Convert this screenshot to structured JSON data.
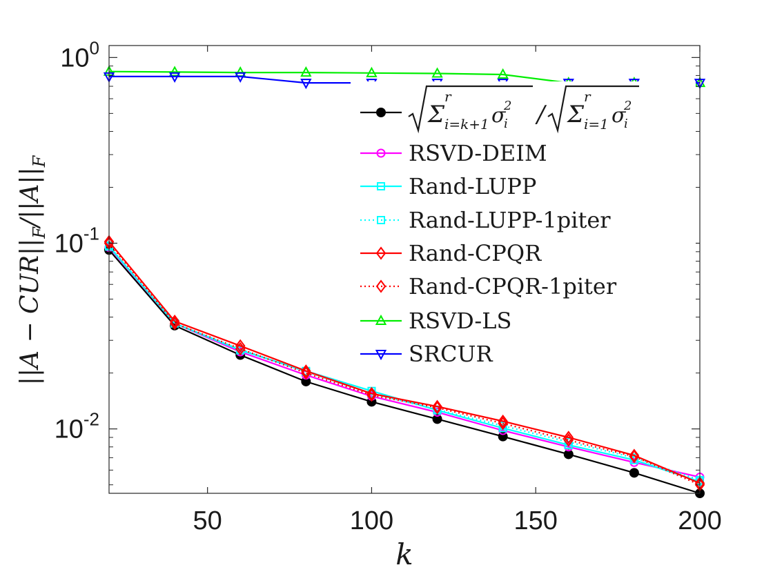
{
  "chart_data": {
    "type": "line",
    "title": "",
    "xlabel": "k",
    "ylabel": "||A − CUR||_F / ||A||_F",
    "x": [
      20,
      40,
      60,
      80,
      100,
      120,
      140,
      160,
      180,
      200
    ],
    "xlim": [
      20,
      200
    ],
    "ylim": [
      0.0045,
      1.16
    ],
    "yscale": "log",
    "xticks": [
      50,
      100,
      150,
      200
    ],
    "xtick_labels": [
      "50",
      "100",
      "150",
      "200"
    ],
    "yticks": [
      {
        "value": 1,
        "mantissa": "10",
        "exponent": "0"
      },
      {
        "value": 0.1,
        "mantissa": "10",
        "exponent": "-1"
      },
      {
        "value": 0.01,
        "mantissa": "10",
        "exponent": "-2"
      }
    ],
    "grid": false,
    "legend_position": "top-right",
    "series": [
      {
        "name": "√(Σ_{i=k+1}^r σ_i²) / √(Σ_{i=1}^r σ_i²)",
        "key": "sigma-tail",
        "color": "#000000",
        "marker": "dot",
        "linestyle": "solid",
        "values": [
          0.092,
          0.036,
          0.025,
          0.018,
          0.014,
          0.0113,
          0.0091,
          0.0073,
          0.0058,
          0.0045
        ]
      },
      {
        "name": "RSVD-DEIM",
        "key": "rsvd-deim",
        "color": "#ff00ff",
        "marker": "circle",
        "linestyle": "solid",
        "values": [
          0.095,
          0.037,
          0.026,
          0.0195,
          0.015,
          0.0123,
          0.0098,
          0.008,
          0.0066,
          0.0055
        ]
      },
      {
        "name": "Rand-LUPP",
        "key": "rand-lupp",
        "color": "#00ffff",
        "marker": "square",
        "linestyle": "solid",
        "values": [
          0.096,
          0.037,
          0.0265,
          0.0205,
          0.016,
          0.0126,
          0.0101,
          0.0082,
          0.0068,
          0.0052
        ]
      },
      {
        "name": "Rand-LUPP-1piter",
        "key": "rand-lupp-1piter",
        "color": "#00ffff",
        "marker": "square",
        "linestyle": "dotted",
        "values": [
          0.097,
          0.037,
          0.0268,
          0.0203,
          0.0155,
          0.0127,
          0.0104,
          0.0085,
          0.007,
          0.0053
        ]
      },
      {
        "name": "Rand-CPQR",
        "key": "rand-cpqr",
        "color": "#ff0000",
        "marker": "diamond",
        "linestyle": "solid",
        "values": [
          0.102,
          0.038,
          0.028,
          0.0205,
          0.0155,
          0.0132,
          0.011,
          0.009,
          0.0072,
          0.0051
        ]
      },
      {
        "name": "Rand-CPQR-1piter",
        "key": "rand-cpqr-1piter",
        "color": "#ff0000",
        "marker": "diamond",
        "linestyle": "dotted",
        "values": [
          0.1,
          0.037,
          0.027,
          0.02,
          0.0152,
          0.013,
          0.0107,
          0.0087,
          0.0071,
          0.005
        ]
      },
      {
        "name": "RSVD-LS",
        "key": "rsvd-ls",
        "color": "#00ee00",
        "marker": "triangle-up",
        "linestyle": "solid",
        "values": [
          0.84,
          0.835,
          0.83,
          0.83,
          0.825,
          0.82,
          0.81,
          0.73,
          0.73,
          0.73
        ]
      },
      {
        "name": "SRCUR",
        "key": "srcur",
        "color": "#0000ff",
        "marker": "triangle-down",
        "linestyle": "solid",
        "values": [
          0.79,
          0.79,
          0.79,
          0.73,
          0.73,
          0.73,
          0.73,
          0.73,
          0.73,
          0.73
        ]
      }
    ]
  }
}
